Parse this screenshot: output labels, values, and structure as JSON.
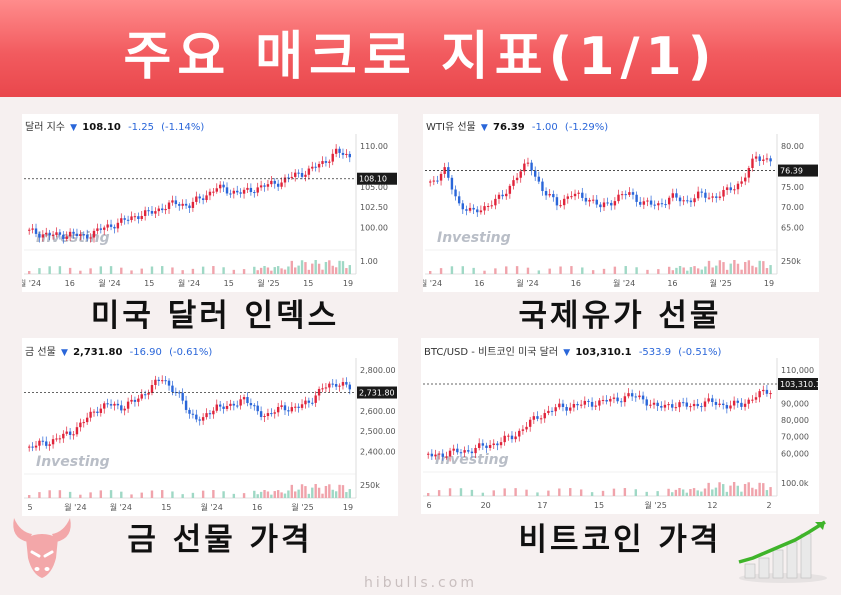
{
  "banner": {
    "title": "주요 매크로 지표(1/1)"
  },
  "footer": {
    "site": "hibulls.com"
  },
  "charts": [
    {
      "name": "달러 지수",
      "price": "108.10",
      "change": "-1.25",
      "pct": "(-1.14%)",
      "caption": "미국 달러 인덱스",
      "watermark": "Investing",
      "yticks": [
        "110.00",
        "108.10",
        "105.00",
        "102.50",
        "100.00",
        "1.00"
      ],
      "xticks": [
        "월 '24",
        "16",
        "월 '24",
        "15",
        "월 '24",
        "15",
        "월 '25",
        "15",
        "19"
      ]
    },
    {
      "name": "WTI유 선물",
      "price": "76.39",
      "change": "-1.00",
      "pct": "(-1.29%)",
      "caption": "국제유가 선물",
      "watermark": "Investing",
      "yticks": [
        "80.00",
        "76.39",
        "75.00",
        "70.00",
        "65.00",
        "250k"
      ],
      "xticks": [
        "월 '24",
        "16",
        "월 '24",
        "16",
        "월 '24",
        "16",
        "월 '25",
        "19"
      ]
    },
    {
      "name": "금 선물",
      "price": "2,731.80",
      "change": "-16.90",
      "pct": "(-0.61%)",
      "caption": "금 선물 가격",
      "watermark": "Investing",
      "yticks": [
        "2,800.00",
        "2,731.80",
        "2,600.00",
        "2,500.00",
        "2,400.00",
        "250k"
      ],
      "xticks": [
        "5",
        "월 '24",
        "월 '24",
        "15",
        "월 '24",
        "16",
        "월 '25",
        "19"
      ]
    },
    {
      "name": "BTC/USD - 비트코인 미국 달러",
      "price": "103,310.1",
      "change": "-533.9",
      "pct": "(-0.51%)",
      "caption": "비트코인 가격",
      "watermark": "Investing",
      "yticks": [
        "110,000",
        "103,310.1",
        "90,000",
        "80,000",
        "70,000",
        "60,000",
        "100.0k"
      ],
      "xticks": [
        "6",
        "20",
        "17",
        "15",
        "월 '25",
        "12",
        "2"
      ]
    }
  ],
  "colors": {
    "up": "#e0243b",
    "down": "#2a66d9",
    "banner": "#f25b5f",
    "vol_up": "#f0a3ab",
    "vol_down": "#9fd8c5"
  },
  "icons": {
    "logo": "bull-head-icon",
    "chart": "growth-chart-icon"
  }
}
